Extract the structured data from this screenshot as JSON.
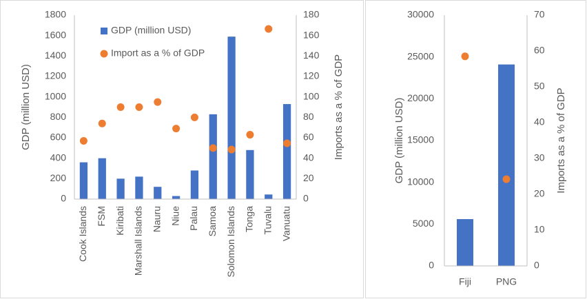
{
  "chart_data": [
    {
      "type": "combo",
      "categories": [
        "Cook Islands",
        "FSM",
        "Kiribati",
        "Marshall Islands",
        "Nauru",
        "Niue",
        "Palau",
        "Samoa",
        "Solomon Islands",
        "Tonga",
        "Tuvalu",
        "Vanuatu"
      ],
      "series": [
        {
          "name": "GDP (million USD)",
          "color": "#4472c4",
          "type": "bar",
          "values": [
            360,
            400,
            200,
            220,
            120,
            30,
            280,
            830,
            1590,
            480,
            45,
            930
          ]
        },
        {
          "name": "Import as a % of GDP",
          "color": "#ed7d31",
          "type": "scatter",
          "axis": "y2",
          "values": [
            57,
            74,
            90,
            90,
            95,
            69,
            80,
            50,
            48.5,
            63,
            166.5,
            54.6
          ]
        }
      ],
      "y_label": "GDP (million USD)",
      "y2_label": "Imports as a % of GDP",
      "ylim": [
        0,
        1800
      ],
      "yticks": [
        0,
        200,
        400,
        600,
        800,
        1000,
        1200,
        1400,
        1600,
        1800
      ],
      "y2lim": [
        0,
        180
      ],
      "y2ticks": [
        0,
        20,
        40,
        60,
        80,
        100,
        120,
        140,
        160,
        180
      ],
      "legend": true
    },
    {
      "type": "combo",
      "categories": [
        "Fiji",
        "PNG"
      ],
      "series": [
        {
          "color": "#4472c4",
          "type": "bar",
          "values": [
            5600,
            24100
          ]
        },
        {
          "color": "#ed7d31",
          "type": "scatter",
          "axis": "y2",
          "values": [
            58.5,
            24.2
          ]
        }
      ],
      "y_label": "GDP (million USD)",
      "y2_label": "Imports as a % of GDP",
      "ylim": [
        0,
        30000
      ],
      "yticks": [
        0,
        5000,
        10000,
        15000,
        20000,
        25000,
        30000
      ],
      "y2lim": [
        0,
        70
      ],
      "y2ticks": [
        0,
        10,
        20,
        30,
        40,
        50,
        60,
        70
      ],
      "legend": false
    }
  ]
}
